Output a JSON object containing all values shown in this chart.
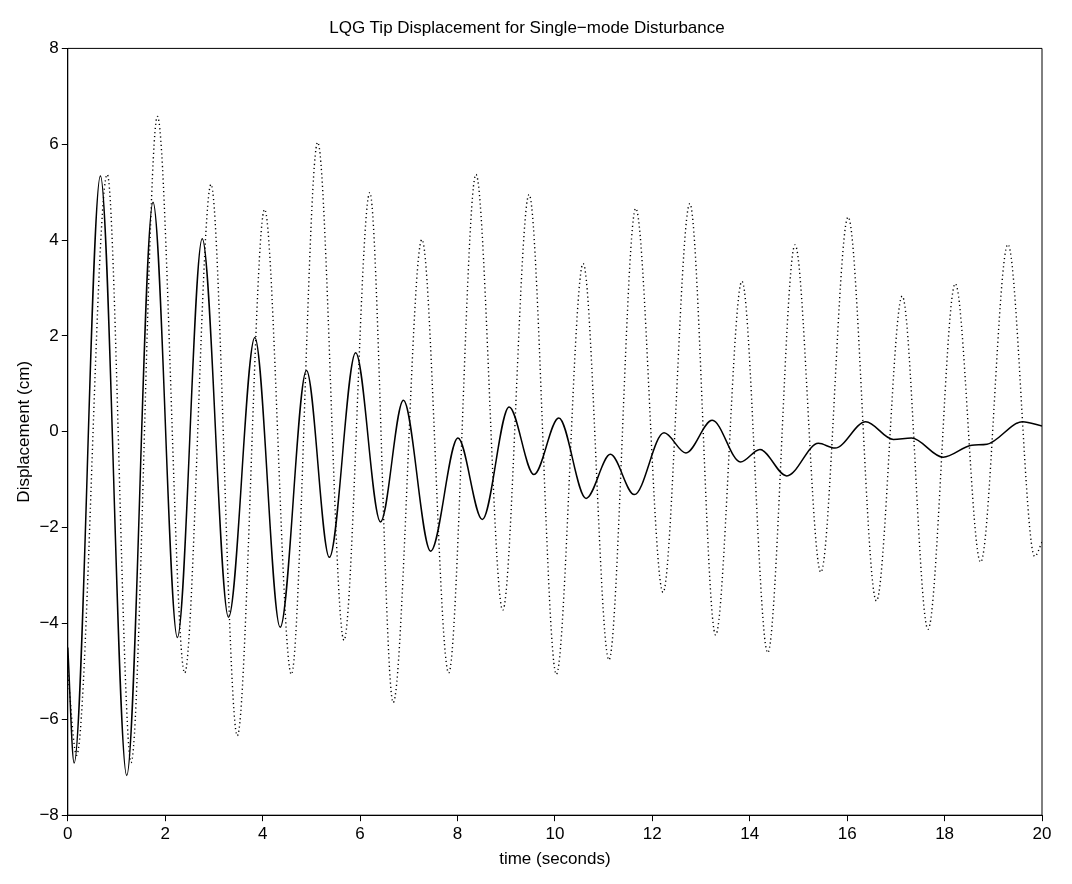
{
  "chart_data": {
    "type": "line",
    "title": "LQG Tip Displacement for Single−mode Disturbance",
    "xlabel": "time (seconds)",
    "ylabel": "Displacement (cm)",
    "xlim": [
      0,
      20
    ],
    "ylim": [
      -8,
      8
    ],
    "xticks": [
      0,
      2,
      4,
      6,
      8,
      10,
      12,
      14,
      16,
      18,
      20
    ],
    "yticks": [
      -8,
      -6,
      -4,
      -2,
      0,
      2,
      4,
      6,
      8
    ],
    "grid": false,
    "legend": false,
    "marker": "none",
    "series": [
      {
        "color": "#000000",
        "line_style": "dotted",
        "x": [
          0,
          0.18,
          0.81,
          1.3,
          1.84,
          2.4,
          2.94,
          3.48,
          4.04,
          4.59,
          5.13,
          5.67,
          6.2,
          6.68,
          7.27,
          7.82,
          8.38,
          8.93,
          9.47,
          10.03,
          10.58,
          11.11,
          11.66,
          12.22,
          12.77,
          13.3,
          13.84,
          14.37,
          14.93,
          15.46,
          16.02,
          16.6,
          17.13,
          17.66,
          18.22,
          18.74,
          19.3,
          19.85,
          20
        ],
        "values": [
          -5,
          -6.75,
          5.37,
          -6.9,
          6.58,
          -5.03,
          5.16,
          -6.34,
          4.64,
          -5.06,
          6.04,
          -4.35,
          4.99,
          -5.65,
          4.01,
          -5.03,
          5.37,
          -3.72,
          4.95,
          -5.06,
          3.51,
          -4.76,
          4.66,
          -3.35,
          4.76,
          -4.24,
          3.14,
          -4.61,
          3.9,
          -2.93,
          4.48,
          -3.53,
          2.83,
          -4.12,
          3.09,
          -2.72,
          3.91,
          -2.6,
          -2.3
        ]
      },
      {
        "color": "#000000",
        "line_style": "solid",
        "x": [
          0,
          0.13,
          0.67,
          1.21,
          1.75,
          2.25,
          2.76,
          3.3,
          3.84,
          4.36,
          4.9,
          5.37,
          5.91,
          6.42,
          6.89,
          7.45,
          8.01,
          8.51,
          9.06,
          9.57,
          10.08,
          10.64,
          11.14,
          11.63,
          12.24,
          12.69,
          13.23,
          13.81,
          14.21,
          14.76,
          15.41,
          15.75,
          16.38,
          16.95,
          17.32,
          17.97,
          18.56,
          18.87,
          19.6,
          20
        ],
        "values": [
          -4.5,
          -6.91,
          5.34,
          -7.17,
          4.79,
          -4.29,
          4.03,
          -3.87,
          1.97,
          -4.08,
          1.28,
          -2.62,
          1.65,
          -1.88,
          0.66,
          -2.49,
          -0.13,
          -1.83,
          0.52,
          -0.89,
          0.29,
          -1.39,
          -0.47,
          -1.31,
          -0.02,
          -0.44,
          0.24,
          -0.63,
          -0.37,
          -0.92,
          -0.24,
          -0.34,
          0.21,
          -0.16,
          -0.13,
          -0.53,
          -0.28,
          -0.26,
          0.21,
          0.12
        ]
      }
    ]
  }
}
